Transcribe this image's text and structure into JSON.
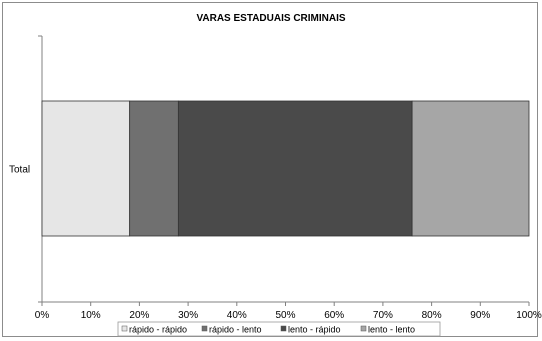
{
  "chart_data": {
    "type": "bar",
    "orientation": "horizontal",
    "stacked": true,
    "percent": true,
    "title": "VARAS ESTADUAIS CRIMINAIS",
    "categories": [
      "Total"
    ],
    "series": [
      {
        "name": "rápido - rápido",
        "values": [
          18
        ],
        "color": "#e6e6e6"
      },
      {
        "name": "rápido - lento",
        "values": [
          10
        ],
        "color": "#707070"
      },
      {
        "name": "lento - rápido",
        "values": [
          48
        ],
        "color": "#4a4a4a"
      },
      {
        "name": "lento - lento",
        "values": [
          24
        ],
        "color": "#a6a6a6"
      }
    ],
    "xlim": [
      0,
      100
    ],
    "x_ticks": [
      "0%",
      "10%",
      "20%",
      "30%",
      "40%",
      "50%",
      "60%",
      "70%",
      "80%",
      "90%",
      "100%"
    ],
    "grid": false,
    "legend_position": "bottom"
  }
}
